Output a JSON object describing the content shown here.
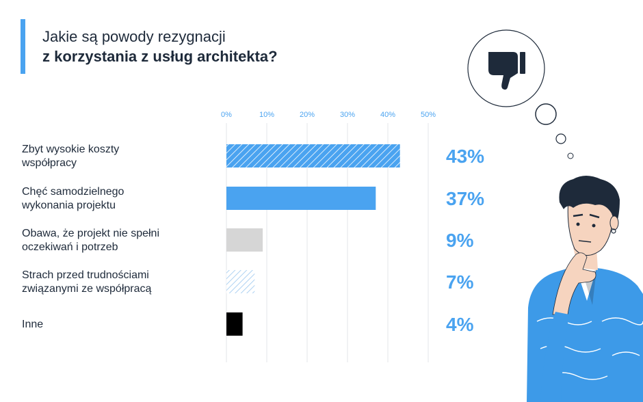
{
  "title": {
    "line1": "Jakie są powody rezygnacji",
    "line2": "z korzystania z usług architekta?"
  },
  "colors": {
    "accent": "#4aa3f0",
    "text": "#1e2a3a",
    "gray": "#d6d6d6",
    "black": "#000000"
  },
  "chart_data": {
    "type": "bar",
    "orientation": "horizontal",
    "title": "Jakie są powody rezygnacji z korzystania z usług architekta?",
    "xlim": [
      0,
      50
    ],
    "ticks": [
      "0%",
      "10%",
      "20%",
      "30%",
      "40%",
      "50%"
    ],
    "tick_values": [
      0,
      10,
      20,
      30,
      40,
      50
    ],
    "grid": true,
    "categories": [
      [
        "Zbyt wysokie koszty",
        "współpracy"
      ],
      [
        "Chęć samodzielnego",
        "wykonania projektu"
      ],
      [
        "Obawa, że projekt nie spełni",
        "oczekiwań i potrzeb"
      ],
      [
        "Strach przed trudnościami",
        "związanymi ze współpracą"
      ],
      [
        "Inne"
      ]
    ],
    "values": [
      43,
      37,
      9,
      7,
      4
    ],
    "value_labels": [
      "43%",
      "37%",
      "9%",
      "7%",
      "4%"
    ],
    "bar_styles": [
      "blue-hatched",
      "blue-solid",
      "gray-solid",
      "light-hatched",
      "black-solid"
    ]
  },
  "illustration": {
    "thought_bubble_icon": "thumbs-down-icon",
    "figure": "thinking-man"
  }
}
